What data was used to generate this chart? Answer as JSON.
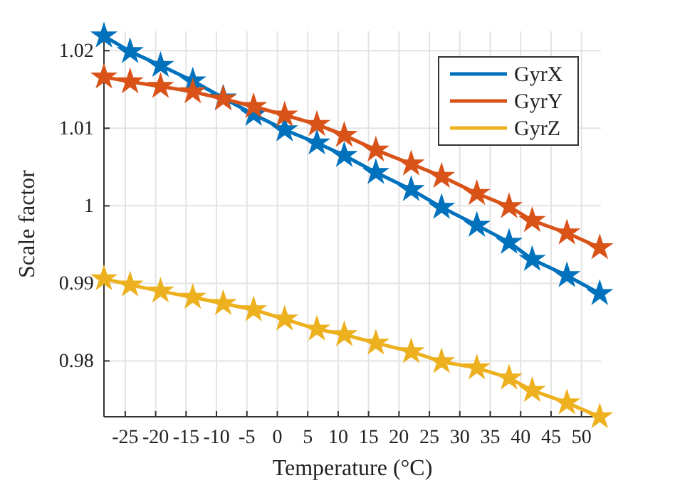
{
  "chart_data": {
    "type": "line",
    "xlabel": "Temperature (°C)",
    "ylabel": "Scale factor",
    "x": [
      -28.5,
      -24.2,
      -19.2,
      -13.9,
      -8.9,
      -3.9,
      1.2,
      6.5,
      11.0,
      16.2,
      22.0,
      27.0,
      32.8,
      38.1,
      41.9,
      47.6,
      53.0
    ],
    "series": [
      {
        "name": "GyrX",
        "color": "#0072bd",
        "values": [
          1.0219,
          1.0199,
          1.0181,
          1.0161,
          1.0139,
          1.0118,
          1.0098,
          1.0081,
          1.0065,
          1.0043,
          1.0021,
          0.9998,
          0.9975,
          0.9953,
          0.9931,
          0.991,
          0.9887
        ]
      },
      {
        "name": "GyrY",
        "color": "#d95319",
        "values": [
          1.0166,
          1.016,
          1.0154,
          1.0147,
          1.0138,
          1.0128,
          1.0117,
          1.0105,
          1.0091,
          1.0072,
          1.0054,
          1.0038,
          1.0016,
          0.9999,
          0.9981,
          0.9965,
          0.9946
        ]
      },
      {
        "name": "GyrZ",
        "color": "#edb120",
        "values": [
          0.9906,
          0.9898,
          0.989,
          0.9882,
          0.9874,
          0.9866,
          0.9854,
          0.9841,
          0.9834,
          0.9823,
          0.9812,
          0.9799,
          0.9791,
          0.9778,
          0.9762,
          0.9746,
          0.9728
        ]
      }
    ],
    "xlim": [
      -28.5,
      53.2
    ],
    "ylim": [
      0.9728,
      1.0225
    ],
    "xticks": [
      -25,
      -20,
      -15,
      -10,
      -5,
      0,
      5,
      10,
      15,
      20,
      25,
      30,
      35,
      40,
      45,
      50
    ],
    "yticks": [
      {
        "value": 0.98,
        "label": "0.98"
      },
      {
        "value": 0.99,
        "label": "0.99"
      },
      {
        "value": 1,
        "label": "1"
      },
      {
        "value": 1.01,
        "label": "1.01"
      },
      {
        "value": 1.02,
        "label": "1.02"
      }
    ],
    "grid": true,
    "legend": "top right",
    "marker": "star",
    "line_style": "solid"
  }
}
